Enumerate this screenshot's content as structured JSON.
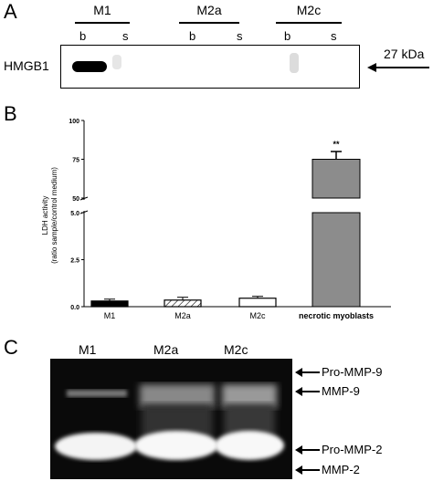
{
  "panel_a": {
    "letter": "A",
    "groups": [
      "M1",
      "M2a",
      "M2c"
    ],
    "lanes": [
      "b",
      "s",
      "b",
      "s",
      "b",
      "s"
    ],
    "row_label": "HMGB1",
    "marker": "27 kDa"
  },
  "panel_b": {
    "letter": "B",
    "ylabel_line1": "LDH activity",
    "ylabel_line2": "(ratio sample/control medium)",
    "significance": "**"
  },
  "chart_data": {
    "type": "bar",
    "categories": [
      "M1",
      "M2a",
      "M2c",
      "necrotic myoblasts"
    ],
    "values": [
      0.3,
      0.35,
      0.45,
      75
    ],
    "errors": [
      0.1,
      0.15,
      0.1,
      5
    ],
    "bar_fills": [
      "black",
      "hatched",
      "white",
      "gray"
    ],
    "ylim_lower": [
      0,
      5
    ],
    "ylim_upper": [
      50,
      100
    ],
    "yticks_lower": [
      "0.0",
      "2.5",
      "5.0"
    ],
    "yticks_upper": [
      "50",
      "75",
      "100"
    ],
    "broken_axis": true,
    "title": "",
    "xlabel": "",
    "ylabel": "LDH activity (ratio sample/control medium)"
  },
  "panel_c": {
    "letter": "C",
    "lanes": [
      "M1",
      "M2a",
      "M2c"
    ],
    "bands": [
      "Pro-MMP-9",
      "MMP-9",
      "Pro-MMP-2",
      "MMP-2"
    ]
  }
}
